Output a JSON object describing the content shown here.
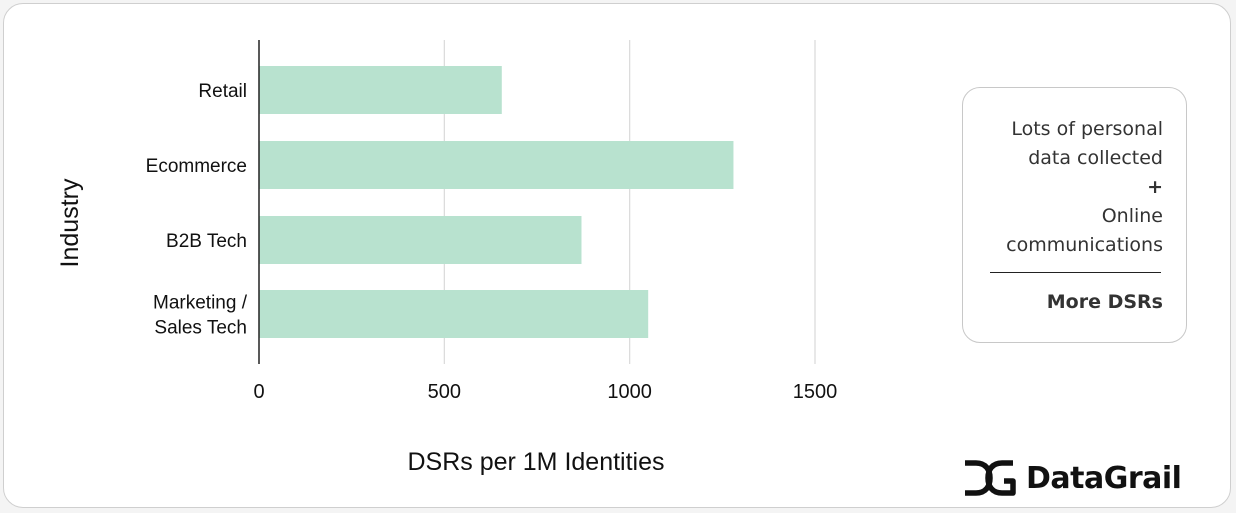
{
  "chart_data": {
    "type": "bar",
    "orientation": "horizontal",
    "categories": [
      "Retail",
      "Ecommerce",
      "B2B Tech",
      "Marketing / Sales Tech"
    ],
    "category_lines": [
      [
        "Retail"
      ],
      [
        "Ecommerce"
      ],
      [
        "B2B Tech"
      ],
      [
        "Marketing /",
        "Sales Tech"
      ]
    ],
    "values": [
      655,
      1280,
      870,
      1050
    ],
    "xlabel": "DSRs per 1M Identities",
    "ylabel": "Industry",
    "xlim": [
      0,
      1500
    ],
    "xticks": [
      0,
      500,
      1000,
      1500
    ],
    "grid": true,
    "bar_color": "#b8e2cf",
    "gridline_color": "#d9d9d9",
    "axis_color": "#222222"
  },
  "callout": {
    "lines": [
      "Lots of personal",
      "data collected"
    ],
    "plus": "+",
    "lines2": [
      "Online",
      "communications"
    ],
    "conclusion": "More DSRs"
  },
  "brand": {
    "name": "DataGrail",
    "logo_icon": "datagrail-logo-icon"
  }
}
